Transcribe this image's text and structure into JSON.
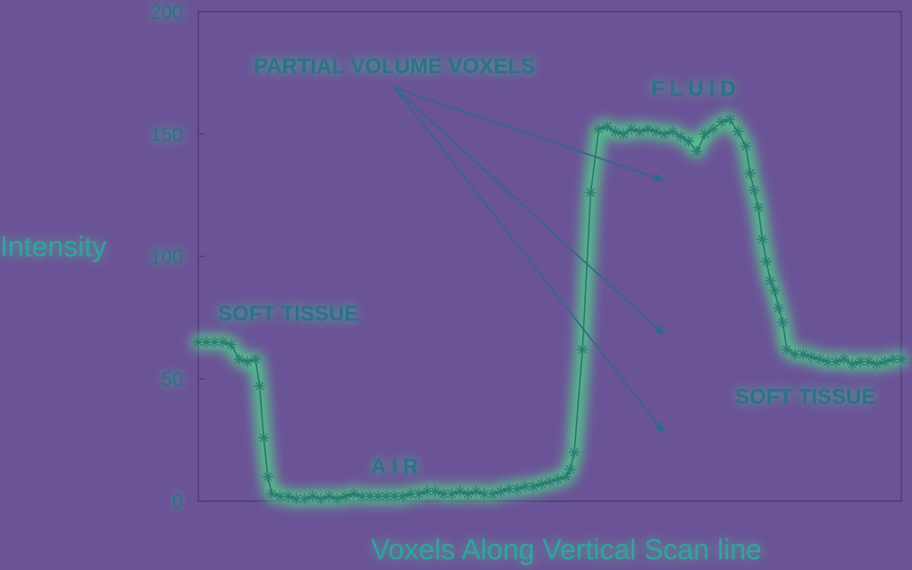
{
  "chart_data": {
    "type": "line",
    "title": "",
    "xlabel": "Voxels Along Vertical Scan line",
    "ylabel": "Intensity",
    "ylim": [
      0,
      200
    ],
    "yticks": [
      "0",
      "50",
      "100",
      "150",
      "200"
    ],
    "grid": false,
    "legend": "none",
    "colors": {
      "background": "#6b5397",
      "line": "#2d6f74",
      "marker": "#2d7d72",
      "glow": "#4fd78a",
      "text": "#2f6f86"
    },
    "annotations": [
      {
        "text": "PARTIAL VOLUME VOXELS",
        "x": 28,
        "y": 178
      },
      {
        "text": "FLUID",
        "x": 67,
        "y": 170
      },
      {
        "text": "SOFT TISSUE",
        "x": 3,
        "y": 74
      },
      {
        "text": "AIR",
        "x": 26,
        "y": 11
      },
      {
        "text": "SOFT TISSUE",
        "x": 82,
        "y": 38
      }
    ],
    "arrows": [
      {
        "from": [
          24,
          169
        ],
        "to": [
          57,
          131
        ]
      },
      {
        "from": [
          24,
          169
        ],
        "to": [
          57,
          68
        ]
      },
      {
        "from": [
          24,
          169
        ],
        "to": [
          57,
          28
        ]
      }
    ],
    "series": [
      {
        "values": [
          [
            0,
            65
          ],
          [
            1,
            65
          ],
          [
            2,
            65
          ],
          [
            3,
            65
          ],
          [
            4,
            64
          ],
          [
            5,
            58
          ],
          [
            6,
            57
          ],
          [
            7,
            58
          ],
          [
            7.5,
            47
          ],
          [
            8,
            26
          ],
          [
            8.5,
            10
          ],
          [
            9,
            3
          ],
          [
            10,
            2
          ],
          [
            11,
            2
          ],
          [
            12,
            1
          ],
          [
            13,
            1
          ],
          [
            14,
            2
          ],
          [
            15,
            1
          ],
          [
            16,
            2
          ],
          [
            17,
            1
          ],
          [
            18,
            2
          ],
          [
            19,
            3
          ],
          [
            20,
            2
          ],
          [
            21,
            2
          ],
          [
            22,
            2
          ],
          [
            23,
            2
          ],
          [
            24,
            2
          ],
          [
            25,
            2
          ],
          [
            26,
            3
          ],
          [
            27,
            3
          ],
          [
            28,
            4
          ],
          [
            29,
            4
          ],
          [
            30,
            3
          ],
          [
            31,
            3
          ],
          [
            32,
            4
          ],
          [
            33,
            3
          ],
          [
            34,
            4
          ],
          [
            35,
            3
          ],
          [
            36,
            3
          ],
          [
            37,
            4
          ],
          [
            38,
            5
          ],
          [
            39,
            5
          ],
          [
            40,
            6
          ],
          [
            41,
            6
          ],
          [
            42,
            7
          ],
          [
            43,
            8
          ],
          [
            44,
            9
          ],
          [
            45,
            10
          ],
          [
            45.5,
            13
          ],
          [
            46,
            20
          ],
          [
            47,
            62
          ],
          [
            48,
            126
          ],
          [
            49,
            152
          ],
          [
            50,
            153
          ],
          [
            51,
            151
          ],
          [
            52,
            150
          ],
          [
            53,
            152
          ],
          [
            54,
            151
          ],
          [
            55,
            152
          ],
          [
            56,
            151
          ],
          [
            57,
            150
          ],
          [
            58,
            151
          ],
          [
            59,
            149
          ],
          [
            60,
            147
          ],
          [
            61,
            143
          ],
          [
            62,
            150
          ],
          [
            63,
            152
          ],
          [
            64,
            155
          ],
          [
            65,
            156
          ],
          [
            66,
            151
          ],
          [
            67,
            145
          ],
          [
            67.5,
            134
          ],
          [
            68,
            127
          ],
          [
            68.5,
            120
          ],
          [
            69,
            107
          ],
          [
            69.5,
            98
          ],
          [
            70,
            90
          ],
          [
            70.5,
            86
          ],
          [
            71,
            79
          ],
          [
            71.5,
            73
          ],
          [
            72,
            62
          ],
          [
            73,
            60
          ],
          [
            74,
            60
          ],
          [
            75,
            59
          ],
          [
            76,
            58
          ],
          [
            77,
            57
          ],
          [
            78,
            57
          ],
          [
            79,
            58
          ],
          [
            80,
            56
          ],
          [
            81,
            57
          ],
          [
            82,
            57
          ],
          [
            83,
            56
          ],
          [
            84,
            57
          ],
          [
            85,
            58
          ],
          [
            86,
            58
          ]
        ]
      }
    ]
  }
}
